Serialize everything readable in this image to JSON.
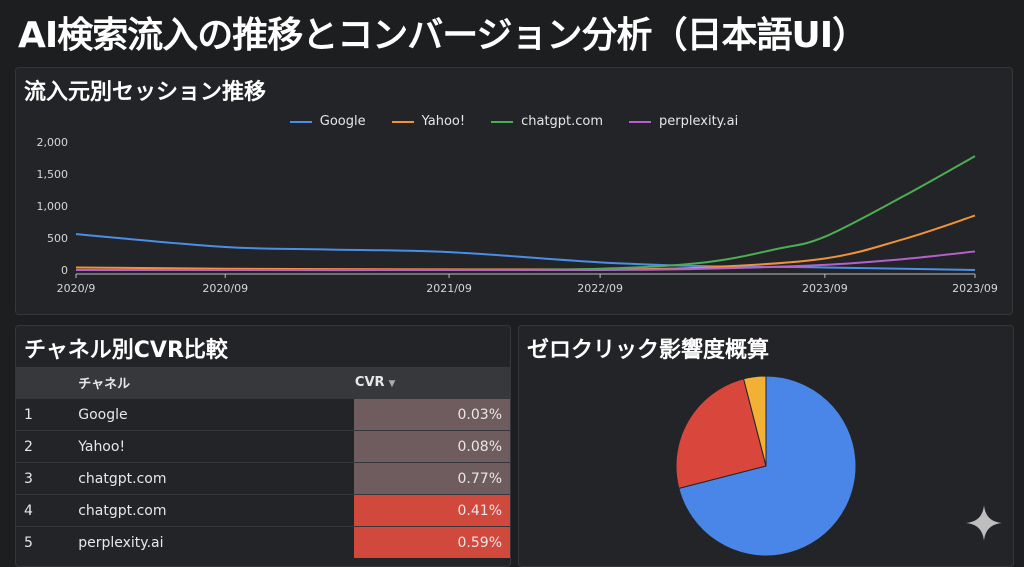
{
  "page": {
    "title": "AI検索流入の推移とコンバージョン分析（日本語UI）"
  },
  "line_card": {
    "title": "流入元別セッション推移"
  },
  "table_card": {
    "title": "チャネル別CVR比較",
    "headers": {
      "rank": "",
      "channel": "チャネル",
      "cvr": "CVR"
    },
    "rows": [
      {
        "rank": "1",
        "channel": "Google",
        "cvr": "0.03%",
        "bg": "#6f5c5e"
      },
      {
        "rank": "2",
        "channel": "Yahoo!",
        "cvr": "0.08%",
        "bg": "#6f5c5e"
      },
      {
        "rank": "3",
        "channel": "chatgpt.com",
        "cvr": "0.77%",
        "bg": "#6f5c5e"
      },
      {
        "rank": "4",
        "channel": "chatgpt.com",
        "cvr": "0.41%",
        "bg": "#d1483c"
      },
      {
        "rank": "5",
        "channel": "perplexity.ai",
        "cvr": "0.59%",
        "bg": "#d1483c"
      }
    ]
  },
  "pie_card": {
    "title": "ゼロクリック影響度概算"
  },
  "chart_data": [
    {
      "type": "line",
      "title": "流入元別セッション推移",
      "x": [
        "2020/9",
        "2020/09",
        "2021/09",
        "2022/09",
        "2023/09",
        "2023/09"
      ],
      "x_positions": [
        0,
        0.166,
        0.415,
        0.583,
        0.833,
        1.0
      ],
      "ylim": [
        0,
        2000
      ],
      "yticks": [
        "2,000",
        "1,500",
        "1,000",
        "500",
        "0"
      ],
      "ytick_values": [
        2000,
        1500,
        1000,
        500,
        0
      ],
      "grid": false,
      "legend": "top-center",
      "series": [
        {
          "name": "Google",
          "color": "#4a8ee8",
          "points": [
            [
              0,
              560
            ],
            [
              0.166,
              360
            ],
            [
              0.28,
              320
            ],
            [
              0.415,
              280
            ],
            [
              0.583,
              120
            ],
            [
              0.7,
              60
            ],
            [
              0.833,
              40
            ],
            [
              1.0,
              0
            ]
          ]
        },
        {
          "name": "Yahoo!",
          "color": "#f0923a",
          "points": [
            [
              0,
              40
            ],
            [
              0.166,
              20
            ],
            [
              0.415,
              10
            ],
            [
              0.583,
              10
            ],
            [
              0.7,
              40
            ],
            [
              0.833,
              180
            ],
            [
              0.92,
              480
            ],
            [
              1.0,
              850
            ]
          ]
        },
        {
          "name": "chatgpt.com",
          "color": "#4cae52",
          "points": [
            [
              0,
              0
            ],
            [
              0.166,
              0
            ],
            [
              0.415,
              0
            ],
            [
              0.583,
              20
            ],
            [
              0.7,
              120
            ],
            [
              0.78,
              330
            ],
            [
              0.833,
              520
            ],
            [
              0.92,
              1150
            ],
            [
              1.0,
              1780
            ]
          ]
        },
        {
          "name": "perplexity.ai",
          "color": "#b461cf",
          "points": [
            [
              0,
              0
            ],
            [
              0.166,
              0
            ],
            [
              0.415,
              0
            ],
            [
              0.583,
              0
            ],
            [
              0.7,
              20
            ],
            [
              0.833,
              80
            ],
            [
              0.92,
              170
            ],
            [
              1.0,
              290
            ]
          ]
        }
      ]
    },
    {
      "type": "pie",
      "title": "ゼロクリック影響度概算",
      "slices": [
        {
          "value": 71,
          "color": "#4a86e8"
        },
        {
          "value": 25,
          "color": "#d9463c"
        },
        {
          "value": 4,
          "color": "#f2b134"
        }
      ]
    }
  ],
  "icons": {
    "sparkle": "sparkle-icon"
  }
}
